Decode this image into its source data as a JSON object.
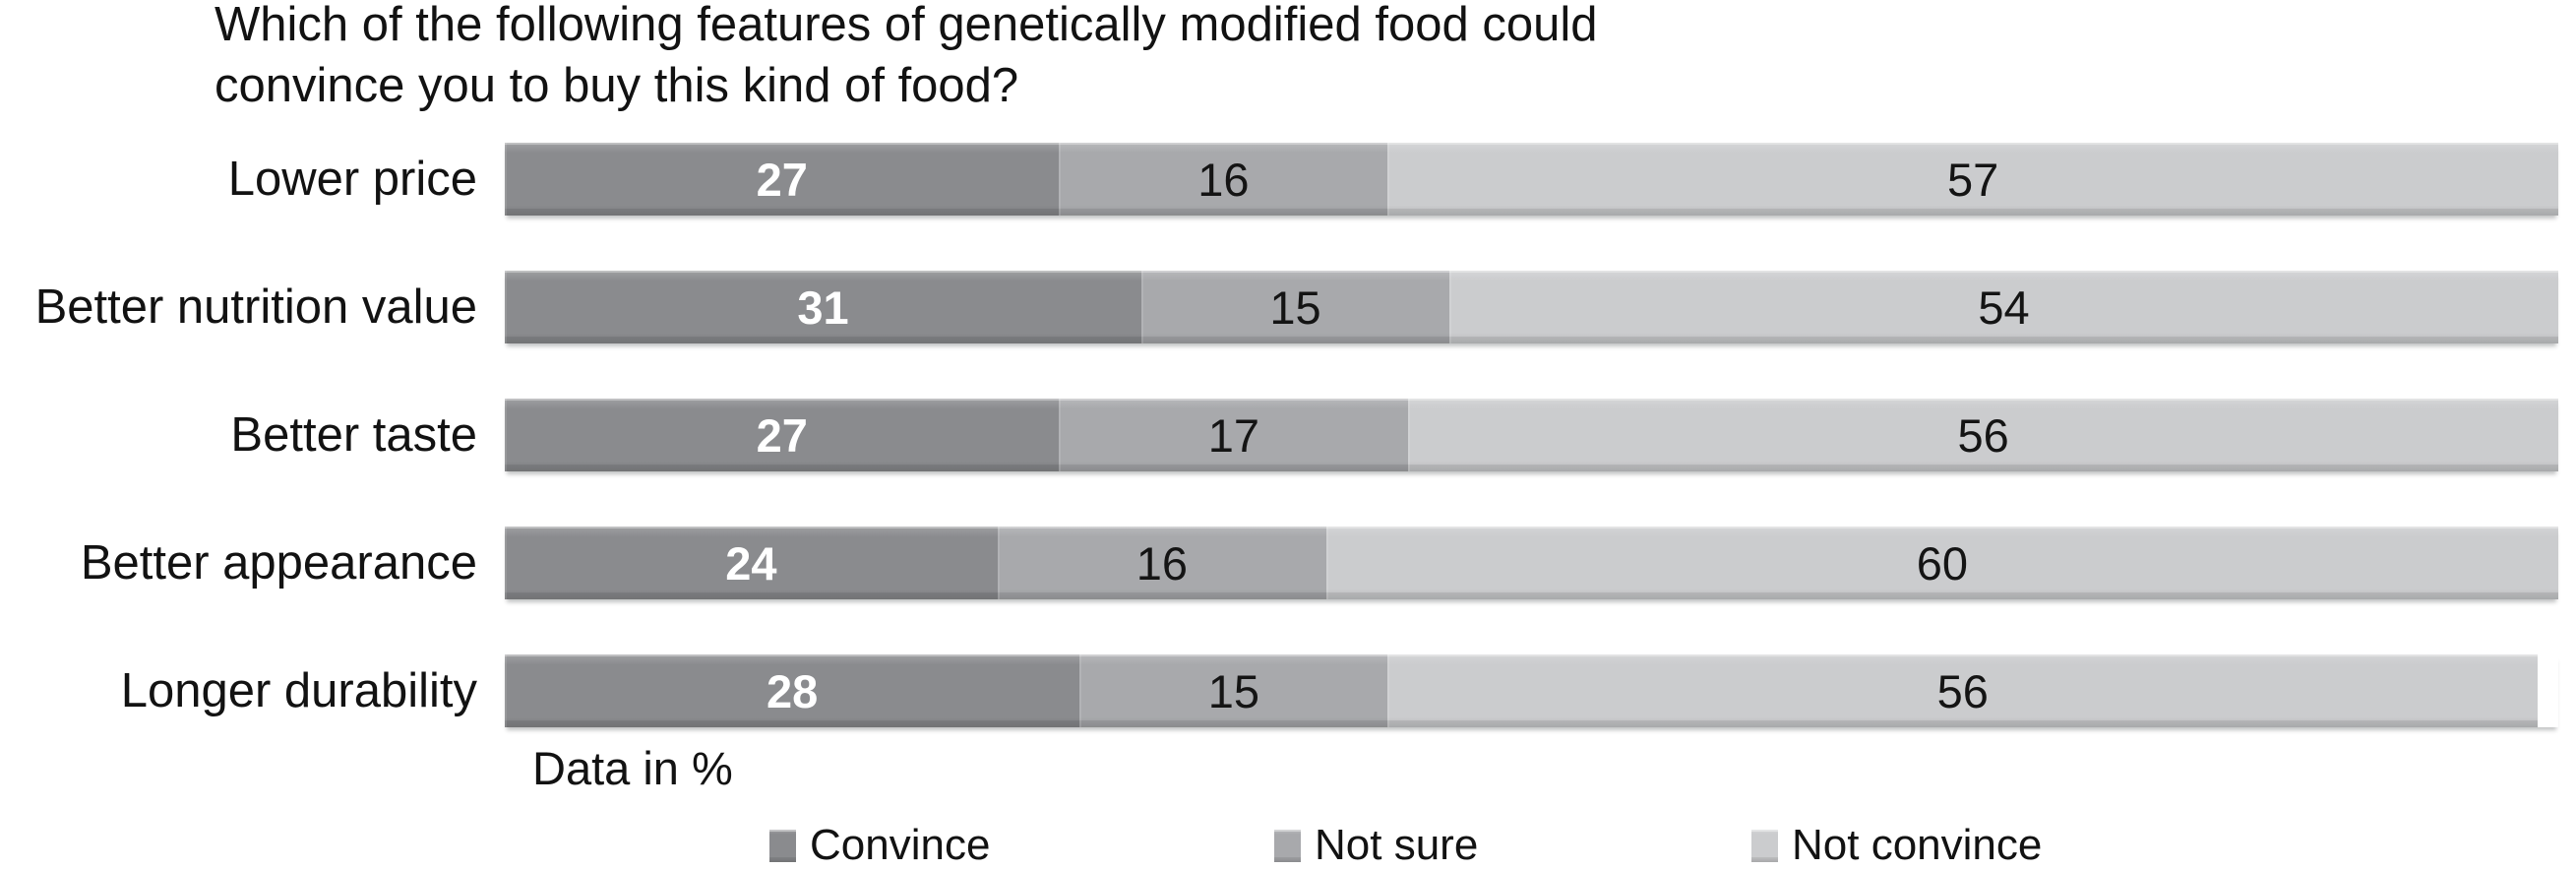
{
  "title": "Which of the following features of genetically modified food could convince you to buy this kind of food?",
  "note": "Data in %",
  "colors": {
    "convince": "#8a8b8e",
    "not_sure": "#a8a9ac",
    "not_convince": "#cbccce",
    "value_on_dark": "#ffffff",
    "value_on_light": "#141414",
    "text": "#121212",
    "background": "#ffffff"
  },
  "chart_data": {
    "type": "bar",
    "orientation": "horizontal",
    "stacked": true,
    "title": "Which of the following features of genetically modified food could convince you to buy this kind of food?",
    "xlabel": "",
    "ylabel": "",
    "note": "Data in %",
    "xlim": [
      0,
      100
    ],
    "grid": false,
    "axes_visible": false,
    "value_labels": "inside-center",
    "legend_position": "bottom",
    "categories": [
      "Lower price",
      "Better nutrition value",
      "Better taste",
      "Better appearance",
      "Longer durability"
    ],
    "series": [
      {
        "name": "Convince",
        "color": "#8a8b8e",
        "label_style": "white-bold",
        "values": [
          27,
          31,
          27,
          24,
          28
        ]
      },
      {
        "name": "Not sure",
        "color": "#a8a9ac",
        "label_style": "black",
        "values": [
          16,
          15,
          17,
          16,
          15
        ]
      },
      {
        "name": "Not convince",
        "color": "#cbccce",
        "label_style": "black",
        "values": [
          57,
          54,
          56,
          60,
          56
        ]
      }
    ]
  },
  "legend": {
    "items": [
      {
        "label": "Convince"
      },
      {
        "label": "Not sure"
      },
      {
        "label": "Not convince"
      }
    ],
    "x_positions": [
      782,
      1295,
      1780
    ]
  }
}
